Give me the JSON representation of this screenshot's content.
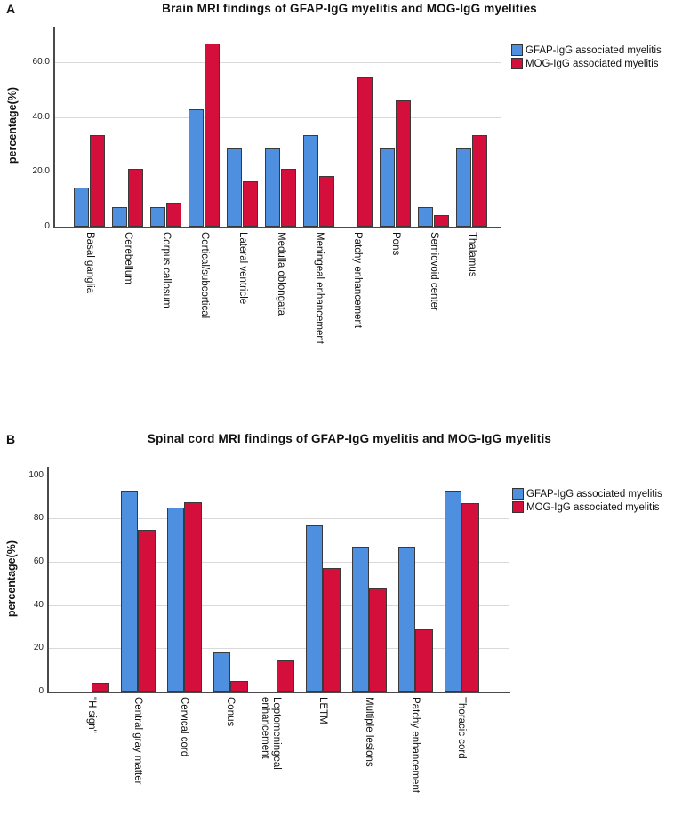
{
  "panels": [
    {
      "letter": "A"
    },
    {
      "letter": "B"
    }
  ],
  "style": {
    "background": "#ffffff",
    "bar_border": "#3a3a3a",
    "gridline": "#d9d9d9",
    "axis": "#4a4a4a"
  },
  "chart_data": [
    {
      "type": "bar",
      "title": "Brain MRI findings of GFAP-IgG myelitis and MOG-IgG myelities",
      "ylabel": "percentage(%)",
      "xlabel": "",
      "ylim": [
        0,
        73
      ],
      "grid": true,
      "legend_position": "top-right-outside",
      "yticks": [
        {
          "value": 0,
          "label": ".0"
        },
        {
          "value": 20,
          "label": "20.0"
        },
        {
          "value": 40,
          "label": "40.0"
        },
        {
          "value": 60,
          "label": "60.0"
        }
      ],
      "categories": [
        "Basal ganglia",
        "Cerebellum",
        "Corpus callosum",
        "Cortical/subcortical",
        "Lateral ventricle",
        "Medulla oblongata",
        "Meningeal enhancement",
        "Patchy enhancement",
        "Pons",
        "Semiovoid center",
        "Thalamus"
      ],
      "series": [
        {
          "name": "GFAP-IgG associated myelitis",
          "color": "#4F8FE0",
          "values": [
            14.3,
            7.1,
            7.1,
            42.9,
            28.6,
            28.6,
            33.3,
            0,
            28.6,
            7.1,
            28.6
          ]
        },
        {
          "name": "MOG-IgG associated myelitis",
          "color": "#D50F3C",
          "values": [
            33.3,
            21.0,
            8.7,
            66.7,
            16.7,
            21.0,
            18.4,
            54.5,
            46.0,
            4.3,
            33.3
          ]
        }
      ]
    },
    {
      "type": "bar",
      "title": "Spinal cord MRI findings of GFAP-IgG myelitis and MOG-IgG myelitis",
      "ylabel": "percentage(%)",
      "xlabel": "",
      "ylim": [
        0,
        104
      ],
      "grid": true,
      "legend_position": "top-right-outside",
      "yticks": [
        {
          "value": 0,
          "label": "0"
        },
        {
          "value": 20,
          "label": "20"
        },
        {
          "value": 40,
          "label": "40"
        },
        {
          "value": 60,
          "label": "60"
        },
        {
          "value": 80,
          "label": "80"
        },
        {
          "value": 100,
          "label": "100"
        }
      ],
      "categories": [
        "\"H sign\"",
        "Central gray matter",
        "Cervical cord",
        "Conus",
        "Leptomeningeal enhancement",
        "LETM",
        "Multiple lesions",
        "Patchy enhancement",
        "Thoracic cord"
      ],
      "series": [
        {
          "name": "GFAP-IgG associated myelitis",
          "color": "#4F8FE0",
          "values": [
            0,
            93,
            85,
            18,
            0,
            77,
            67,
            67,
            93
          ]
        },
        {
          "name": "MOG-IgG associated myelitis",
          "color": "#D50F3C",
          "values": [
            4.3,
            75,
            87.5,
            4.8,
            14.3,
            57.1,
            47.6,
            28.6,
            87
          ]
        }
      ]
    }
  ]
}
